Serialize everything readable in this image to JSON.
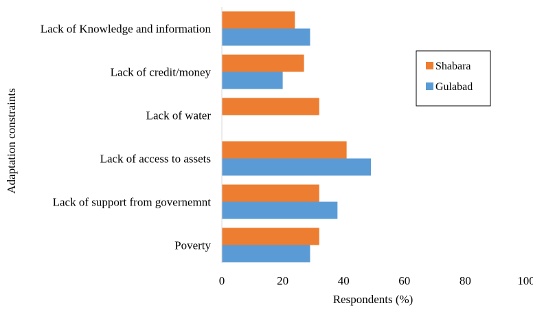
{
  "chart_data": {
    "type": "bar",
    "orientation": "horizontal",
    "categories": [
      "Lack of Knowledge and information",
      "Lack of credit/money",
      "Lack of water",
      "Lack of access to assets ",
      "Lack of support from governemnt",
      "Poverty"
    ],
    "series": [
      {
        "name": "Shabara",
        "color": "#ED7D31",
        "values": [
          24,
          27,
          32,
          41,
          32,
          32
        ]
      },
      {
        "name": "Gulabad",
        "color": "#5B9BD5",
        "values": [
          29,
          20,
          0,
          49,
          38,
          29
        ]
      }
    ],
    "xlabel": "Respondents (%)",
    "ylabel": "Adaptation constraints",
    "xlim": [
      0,
      100
    ],
    "xticks": [
      "0",
      "20",
      "40",
      "60",
      "80",
      "100"
    ],
    "grid": false,
    "legend_position": "right"
  }
}
